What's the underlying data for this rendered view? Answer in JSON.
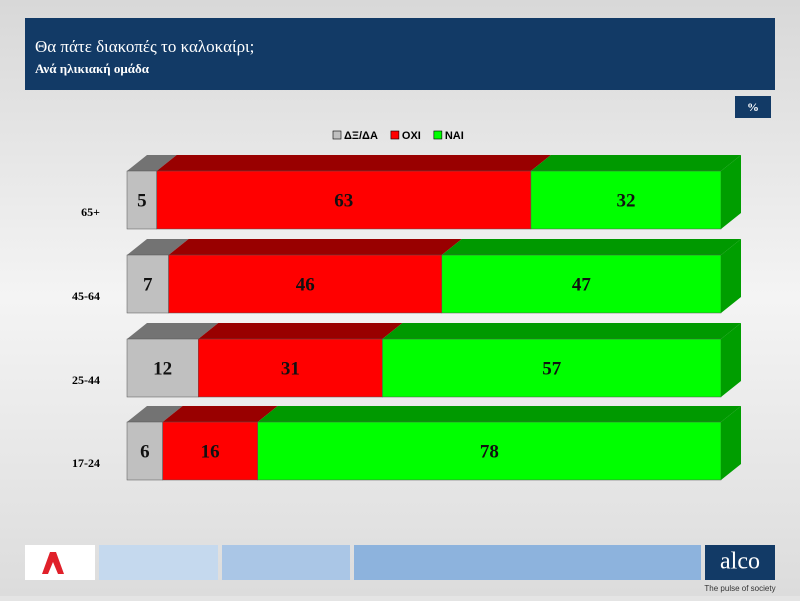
{
  "chart_data": {
    "type": "stacked-bar-3d",
    "title": "Θα πάτε διακοπές το καλοκαίρι;",
    "subtitle": "Ανά ηλικιακή ομάδα",
    "unit_label": "%",
    "categories": [
      "65+",
      "45-64",
      "25-44",
      "17-24"
    ],
    "xlim": [
      0,
      100
    ],
    "series": [
      {
        "name": "ΔΞ/ΔΑ",
        "color": "#c0c0c0",
        "values": [
          5,
          7,
          12,
          6
        ]
      },
      {
        "name": "ΟΧΙ",
        "color": "#ff0000",
        "values": [
          63,
          46,
          31,
          16
        ]
      },
      {
        "name": "ΝΑΙ",
        "color": "#00ff00",
        "values": [
          32,
          47,
          57,
          78
        ]
      }
    ]
  },
  "footer": {
    "brand": "alco",
    "tagline": "The pulse of society"
  }
}
